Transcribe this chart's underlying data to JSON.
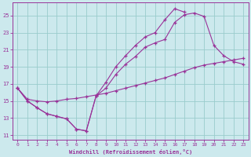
{
  "xlabel": "Windchill (Refroidissement éolien,°C)",
  "xlim": [
    -0.5,
    23.5
  ],
  "ylim": [
    10.5,
    26.5
  ],
  "xticks": [
    0,
    1,
    2,
    3,
    4,
    5,
    6,
    7,
    8,
    9,
    10,
    11,
    12,
    13,
    14,
    15,
    16,
    17,
    18,
    19,
    20,
    21,
    22,
    23
  ],
  "yticks": [
    11,
    13,
    15,
    17,
    19,
    21,
    23,
    25
  ],
  "background_color": "#cce9ed",
  "line_color": "#993399",
  "grid_color": "#99cccc",
  "line1_x": [
    0,
    1,
    2,
    3,
    4,
    5,
    6,
    7,
    8,
    9,
    10,
    11,
    12,
    13,
    14,
    15,
    16,
    17,
    18,
    19,
    20,
    21,
    22,
    23
  ],
  "line1_y": [
    16.5,
    15.0,
    14.2,
    13.5,
    13.2,
    12.9,
    11.7,
    11.5,
    15.6,
    16.5,
    18.1,
    19.3,
    20.2,
    21.3,
    21.8,
    22.2,
    24.2,
    25.1,
    25.3,
    24.9,
    21.5,
    20.3,
    19.6,
    19.3
  ],
  "line2_x": [
    0,
    1,
    2,
    3,
    4,
    5,
    6,
    7,
    8,
    9,
    10,
    11,
    12,
    13,
    14,
    15,
    16,
    17
  ],
  "line2_y": [
    16.5,
    15.0,
    14.2,
    13.5,
    13.2,
    12.9,
    11.7,
    11.5,
    15.6,
    17.2,
    19.0,
    20.3,
    21.5,
    22.5,
    23.0,
    24.5,
    25.8,
    25.4
  ],
  "line3_x": [
    0,
    1,
    2,
    3,
    4,
    5,
    6,
    7,
    8,
    9,
    10,
    11,
    12,
    13,
    14,
    15,
    16,
    17,
    18,
    19,
    20,
    21,
    22,
    23
  ],
  "line3_y": [
    16.5,
    15.2,
    15.0,
    14.9,
    15.0,
    15.2,
    15.3,
    15.5,
    15.7,
    15.9,
    16.2,
    16.5,
    16.8,
    17.1,
    17.4,
    17.7,
    18.1,
    18.5,
    18.9,
    19.2,
    19.4,
    19.6,
    19.8,
    20.0
  ]
}
